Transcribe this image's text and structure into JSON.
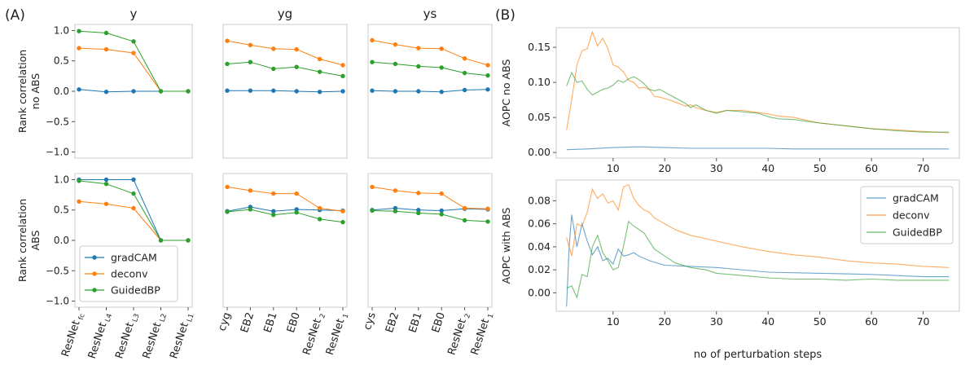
{
  "panel_labels": {
    "a": "(A)",
    "b": "(B)"
  },
  "colors": {
    "gradcam": "#1f77b4",
    "deconv": "#ff7f0e",
    "guided": "#2ca02c",
    "axis": "#cccccc"
  },
  "chart_data": [
    {
      "id": "A-y-noabs",
      "type": "line",
      "title": "y",
      "ylabel": "Rank correlation\nno ABS",
      "ylim": [
        -1.1,
        1.1
      ],
      "yticks": [
        1.0,
        0.5,
        0.0,
        -0.5,
        -1.0
      ],
      "ytick_labels": [
        "1.0",
        "0.5",
        "0.0",
        "−0.5",
        "−1.0"
      ],
      "categories": [
        "ResNet fc",
        "ResNet L4",
        "ResNet L3",
        "ResNet L2",
        "ResNet L1"
      ],
      "series": [
        {
          "name": "gradCAM",
          "values": [
            0.03,
            -0.01,
            0.0,
            0.0,
            0.0
          ]
        },
        {
          "name": "deconv",
          "values": [
            0.71,
            0.69,
            0.63,
            0.0,
            0.0
          ]
        },
        {
          "name": "GuidedBP",
          "values": [
            0.99,
            0.96,
            0.82,
            0.0,
            0.0
          ]
        }
      ]
    },
    {
      "id": "A-yg-noabs",
      "type": "line",
      "title": "yg",
      "ylim": [
        -1.1,
        1.1
      ],
      "categories": [
        "cyg",
        "EB2",
        "EB1",
        "EB0",
        "ResNet 2",
        "ResNet 1"
      ],
      "series": [
        {
          "name": "gradCAM",
          "values": [
            0.01,
            0.01,
            0.01,
            0.0,
            -0.01,
            0.0
          ]
        },
        {
          "name": "deconv",
          "values": [
            0.83,
            0.76,
            0.7,
            0.69,
            0.53,
            0.43
          ]
        },
        {
          "name": "GuidedBP",
          "values": [
            0.45,
            0.48,
            0.37,
            0.4,
            0.32,
            0.25
          ]
        }
      ]
    },
    {
      "id": "A-ys-noabs",
      "type": "line",
      "title": "ys",
      "ylim": [
        -1.1,
        1.1
      ],
      "categories": [
        "cys",
        "EB2",
        "EB1",
        "EB0",
        "ResNet 2",
        "ResNet 1"
      ],
      "series": [
        {
          "name": "gradCAM",
          "values": [
            0.01,
            0.0,
            0.0,
            -0.01,
            0.02,
            0.03
          ]
        },
        {
          "name": "deconv",
          "values": [
            0.84,
            0.77,
            0.71,
            0.7,
            0.54,
            0.43
          ]
        },
        {
          "name": "GuidedBP",
          "values": [
            0.48,
            0.45,
            0.41,
            0.39,
            0.3,
            0.26
          ]
        }
      ]
    },
    {
      "id": "A-y-abs",
      "type": "line",
      "ylabel": "Rank correlation\nABS",
      "ylim": [
        -1.1,
        1.1
      ],
      "yticks": [
        1.0,
        0.5,
        0.0,
        -0.5,
        -1.0
      ],
      "ytick_labels": [
        "1.0",
        "0.5",
        "0.0",
        "−0.5",
        "−1.0"
      ],
      "categories": [
        "ResNet fc",
        "ResNet L4",
        "ResNet L3",
        "ResNet L2",
        "ResNet L1"
      ],
      "series": [
        {
          "name": "gradCAM",
          "values": [
            1.0,
            1.0,
            1.0,
            0.0,
            0.0
          ]
        },
        {
          "name": "deconv",
          "values": [
            0.64,
            0.6,
            0.53,
            0.0,
            0.0
          ]
        },
        {
          "name": "GuidedBP",
          "values": [
            0.98,
            0.93,
            0.77,
            0.0,
            0.0
          ]
        }
      ],
      "legend": {
        "position": "lower-left",
        "entries": [
          "gradCAM",
          "deconv",
          "GuidedBP"
        ]
      }
    },
    {
      "id": "A-yg-abs",
      "type": "line",
      "ylim": [
        -1.1,
        1.1
      ],
      "categories": [
        "cyg",
        "EB2",
        "EB1",
        "EB0",
        "ResNet 2",
        "ResNet 1"
      ],
      "series": [
        {
          "name": "gradCAM",
          "values": [
            0.48,
            0.55,
            0.48,
            0.51,
            0.5,
            0.49
          ]
        },
        {
          "name": "deconv",
          "values": [
            0.88,
            0.82,
            0.77,
            0.77,
            0.53,
            0.48
          ]
        },
        {
          "name": "GuidedBP",
          "values": [
            0.47,
            0.51,
            0.42,
            0.46,
            0.35,
            0.3
          ]
        }
      ]
    },
    {
      "id": "A-ys-abs",
      "type": "line",
      "ylim": [
        -1.1,
        1.1
      ],
      "categories": [
        "cys",
        "EB2",
        "EB1",
        "EB0",
        "ResNet 2",
        "ResNet 1"
      ],
      "series": [
        {
          "name": "gradCAM",
          "values": [
            0.5,
            0.53,
            0.5,
            0.49,
            0.52,
            0.51
          ]
        },
        {
          "name": "deconv",
          "values": [
            0.88,
            0.82,
            0.78,
            0.77,
            0.53,
            0.52
          ]
        },
        {
          "name": "GuidedBP",
          "values": [
            0.49,
            0.48,
            0.45,
            0.43,
            0.33,
            0.31
          ]
        }
      ]
    },
    {
      "id": "B-top",
      "type": "line",
      "ylabel": "AOPC no ABS",
      "xlim": [
        -1,
        77
      ],
      "ylim": [
        -0.008,
        0.178
      ],
      "xticks": [
        10,
        20,
        30,
        40,
        50,
        60,
        70
      ],
      "yticks": [
        0.0,
        0.05,
        0.1,
        0.15
      ],
      "ytick_labels": [
        "0.00",
        "0.05",
        "0.10",
        "0.15"
      ],
      "series": [
        {
          "name": "gradCAM",
          "x": [
            1,
            5,
            10,
            15,
            20,
            25,
            30,
            35,
            40,
            45,
            50,
            55,
            60,
            65,
            70,
            75
          ],
          "values": [
            0.004,
            0.005,
            0.007,
            0.008,
            0.007,
            0.006,
            0.006,
            0.006,
            0.006,
            0.005,
            0.005,
            0.005,
            0.005,
            0.005,
            0.005,
            0.005
          ]
        },
        {
          "name": "deconv",
          "x": [
            1,
            2,
            3,
            4,
            5,
            6,
            7,
            8,
            9,
            10,
            11,
            12,
            13,
            14,
            15,
            16,
            17,
            18,
            19,
            20,
            22,
            24,
            25,
            26,
            28,
            30,
            32,
            35,
            38,
            40,
            42,
            45,
            48,
            50,
            55,
            60,
            65,
            70,
            75
          ],
          "values": [
            0.032,
            0.075,
            0.125,
            0.145,
            0.148,
            0.172,
            0.152,
            0.163,
            0.148,
            0.125,
            0.122,
            0.115,
            0.103,
            0.1,
            0.092,
            0.093,
            0.09,
            0.08,
            0.079,
            0.077,
            0.072,
            0.066,
            0.068,
            0.064,
            0.06,
            0.057,
            0.06,
            0.06,
            0.057,
            0.055,
            0.052,
            0.05,
            0.045,
            0.042,
            0.038,
            0.034,
            0.032,
            0.03,
            0.028
          ]
        },
        {
          "name": "GuidedBP",
          "x": [
            1,
            2,
            3,
            4,
            5,
            6,
            7,
            8,
            9,
            10,
            11,
            12,
            13,
            14,
            15,
            16,
            17,
            18,
            19,
            20,
            22,
            24,
            25,
            26,
            28,
            30,
            32,
            35,
            38,
            40,
            42,
            45,
            48,
            50,
            55,
            60,
            65,
            70,
            75
          ],
          "values": [
            0.095,
            0.114,
            0.1,
            0.102,
            0.09,
            0.082,
            0.086,
            0.09,
            0.092,
            0.096,
            0.103,
            0.1,
            0.105,
            0.108,
            0.104,
            0.098,
            0.09,
            0.088,
            0.09,
            0.086,
            0.078,
            0.07,
            0.064,
            0.068,
            0.06,
            0.056,
            0.06,
            0.058,
            0.056,
            0.051,
            0.048,
            0.047,
            0.044,
            0.042,
            0.038,
            0.034,
            0.031,
            0.029,
            0.029
          ]
        }
      ]
    },
    {
      "id": "B-bottom",
      "type": "line",
      "ylabel": "AOPC with ABS",
      "xlabel": "no of perturbation steps",
      "xlim": [
        -1,
        77
      ],
      "ylim": [
        -0.016,
        0.098
      ],
      "xticks": [
        10,
        20,
        30,
        40,
        50,
        60,
        70
      ],
      "yticks": [
        0.0,
        0.02,
        0.04,
        0.06,
        0.08
      ],
      "ytick_labels": [
        "0.00",
        "0.02",
        "0.04",
        "0.06",
        "0.08"
      ],
      "legend": {
        "position": "top-right",
        "entries": [
          "gradCAM",
          "deconv",
          "GuidedBP"
        ]
      },
      "series": [
        {
          "name": "gradCAM",
          "x": [
            1,
            1.5,
            2,
            3,
            4,
            5,
            6,
            7,
            8,
            9,
            10,
            11,
            12,
            13,
            14,
            15,
            17,
            20,
            25,
            30,
            40,
            50,
            60,
            70,
            75
          ],
          "values": [
            -0.012,
            0.04,
            0.068,
            0.04,
            0.06,
            0.045,
            0.033,
            0.04,
            0.028,
            0.03,
            0.025,
            0.038,
            0.032,
            0.033,
            0.035,
            0.032,
            0.028,
            0.024,
            0.023,
            0.022,
            0.018,
            0.017,
            0.016,
            0.014,
            0.014
          ]
        },
        {
          "name": "deconv",
          "x": [
            1,
            2,
            3,
            4,
            5,
            6,
            7,
            8,
            9,
            10,
            11,
            12,
            13,
            14,
            15,
            16,
            17,
            18,
            20,
            22,
            25,
            28,
            30,
            35,
            40,
            45,
            50,
            55,
            60,
            65,
            70,
            75
          ],
          "values": [
            0.048,
            0.032,
            0.06,
            0.058,
            0.07,
            0.09,
            0.082,
            0.086,
            0.078,
            0.08,
            0.072,
            0.092,
            0.094,
            0.082,
            0.076,
            0.072,
            0.07,
            0.065,
            0.06,
            0.055,
            0.05,
            0.047,
            0.045,
            0.04,
            0.036,
            0.033,
            0.031,
            0.028,
            0.026,
            0.025,
            0.023,
            0.022
          ]
        },
        {
          "name": "GuidedBP",
          "x": [
            1,
            2,
            3,
            4,
            5,
            6,
            7,
            8,
            9,
            10,
            11,
            12,
            13,
            14,
            15,
            16,
            17,
            18,
            20,
            22,
            25,
            28,
            30,
            35,
            40,
            45,
            50,
            55,
            60,
            65,
            70,
            75
          ],
          "values": [
            0.004,
            0.006,
            -0.004,
            0.016,
            0.014,
            0.04,
            0.05,
            0.035,
            0.028,
            0.02,
            0.022,
            0.04,
            0.062,
            0.058,
            0.055,
            0.052,
            0.045,
            0.038,
            0.032,
            0.026,
            0.022,
            0.02,
            0.017,
            0.015,
            0.013,
            0.012,
            0.012,
            0.011,
            0.012,
            0.011,
            0.011,
            0.011
          ]
        }
      ]
    }
  ]
}
